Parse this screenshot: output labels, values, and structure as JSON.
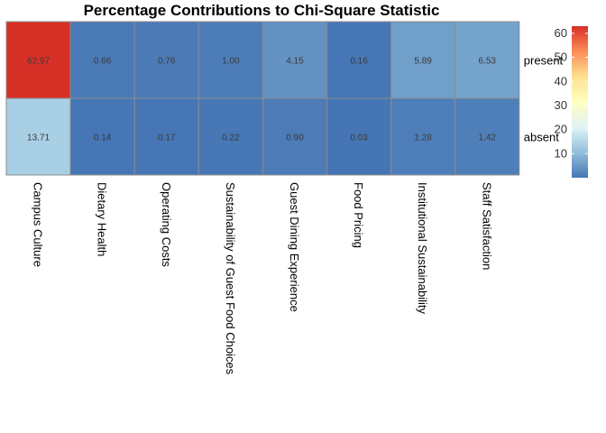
{
  "chart_data": {
    "type": "heatmap",
    "title": "Percentage Contributions to Chi-Square Statistic",
    "columns": [
      "Campus Culture",
      "Dietary Health",
      "Operating Costs",
      "Sustainability of Guest Food Choices",
      "Guest Dining Experience",
      "Food Pricing",
      "Institutional Sustainability",
      "Staff Satisfaction"
    ],
    "rows": [
      "present",
      "absent"
    ],
    "values": [
      [
        62.97,
        0.66,
        0.76,
        1.0,
        4.15,
        0.16,
        5.89,
        6.53
      ],
      [
        13.71,
        0.14,
        0.17,
        0.22,
        0.9,
        0.03,
        1.28,
        1.42
      ]
    ],
    "value_labels": [
      [
        "62.97",
        "0.66",
        "0.76",
        "1.00",
        "4.15",
        "0.16",
        "5.89",
        "6.53"
      ],
      [
        "13.71",
        "0.14",
        "0.17",
        "0.22",
        "0.90",
        "0.03",
        "1.28",
        "1.42"
      ]
    ],
    "color_range": [
      0,
      62.97
    ],
    "color_scale": [
      "#4575b4",
      "#91bfdb",
      "#e0f3f8",
      "#ffffbf",
      "#fee090",
      "#fc8d59",
      "#d73027"
    ],
    "legend": {
      "placement": "right",
      "ticks": [
        10,
        20,
        30,
        40,
        50,
        60
      ],
      "tick_labels": [
        "10",
        "20",
        "30",
        "40",
        "50",
        "60"
      ]
    },
    "grid": true
  }
}
